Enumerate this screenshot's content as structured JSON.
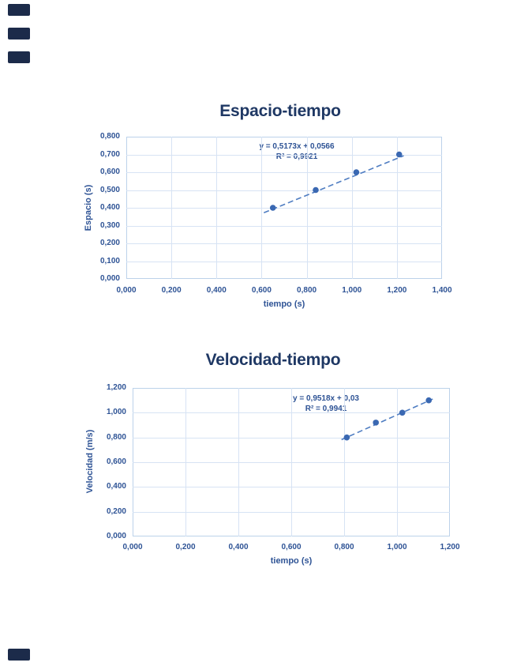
{
  "colors": {
    "background": "#ffffff",
    "chart_title": "#1f3864",
    "axis_text": "#2e5395",
    "gridline": "#d7e3f4",
    "plot_border": "#bcd2ea",
    "point_fill": "#3a68b2",
    "trend_line": "#4f7dc2",
    "edge_marker": "#1c2b4a"
  },
  "chart_data": [
    {
      "type": "scatter",
      "title": "Espacio-tiempo",
      "xlabel": "tiempo (s)",
      "ylabel": "Espacio (s)",
      "xlim": [
        0,
        1.4
      ],
      "ylim": [
        0,
        0.8
      ],
      "grid": true,
      "x_tick_labels": [
        "0,000",
        "0,200",
        "0,400",
        "0,600",
        "0,800",
        "1,000",
        "1,200",
        "1,400"
      ],
      "y_tick_labels": [
        "0,000",
        "0,100",
        "0,200",
        "0,300",
        "0,400",
        "0,500",
        "0,600",
        "0,700",
        "0,800"
      ],
      "x": [
        0.65,
        0.84,
        1.02,
        1.21
      ],
      "y": [
        0.4,
        0.5,
        0.6,
        0.7
      ],
      "trendline": {
        "equation": "y = 0,5173x + 0,0566",
        "r2_label": "R² = 0,9921",
        "slope": 0.5173,
        "intercept": 0.0566,
        "x_range": [
          0.61,
          1.23
        ],
        "style": "dashed"
      }
    },
    {
      "type": "scatter",
      "title": "Velocidad-tiempo",
      "xlabel": "tiempo (s)",
      "ylabel": "Velocidad (m/s)",
      "xlim": [
        0,
        1.2
      ],
      "ylim": [
        0,
        1.2
      ],
      "grid": true,
      "x_tick_labels": [
        "0,000",
        "0,200",
        "0,400",
        "0,600",
        "0,800",
        "1,000",
        "1,200"
      ],
      "y_tick_labels": [
        "0,000",
        "0,200",
        "0,400",
        "0,600",
        "0,800",
        "1,000",
        "1,200"
      ],
      "x": [
        0.81,
        0.92,
        1.02,
        1.12
      ],
      "y": [
        0.8,
        0.92,
        1.0,
        1.1
      ],
      "trendline": {
        "equation": "y = 0,9518x + 0,03",
        "r2_label": "R² = 0,9941",
        "slope": 0.9518,
        "intercept": 0.03,
        "x_range": [
          0.79,
          1.135
        ],
        "style": "dashed"
      }
    }
  ]
}
